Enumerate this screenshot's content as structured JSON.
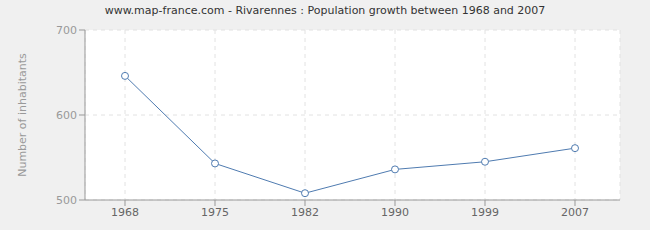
{
  "chart_data": {
    "type": "line",
    "title": "www.map-france.com - Rivarennes : Population growth between 1968 and 2007",
    "y_label": "Number of inhabitants",
    "categories": [
      "1968",
      "1975",
      "1982",
      "1990",
      "1999",
      "2007"
    ],
    "values": [
      646,
      543,
      508,
      536,
      545,
      561
    ],
    "color": "#4f7bb0",
    "marker": "circle",
    "ylim": [
      500,
      700
    ],
    "yticks": [
      500,
      600,
      700
    ],
    "grid": true
  }
}
